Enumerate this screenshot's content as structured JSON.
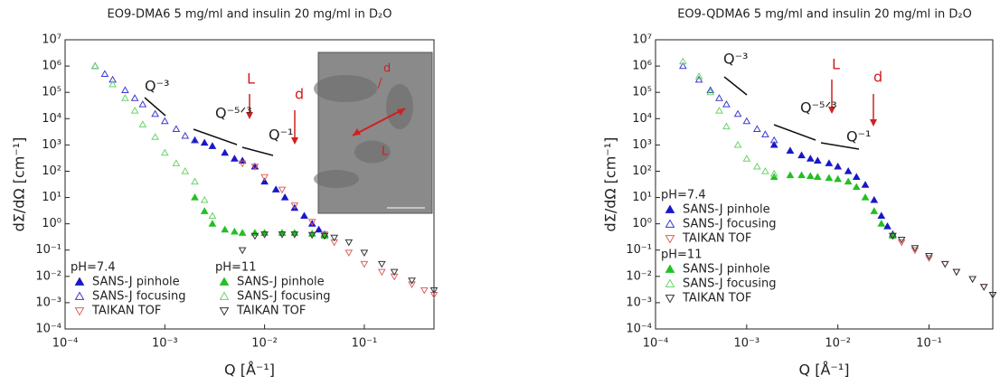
{
  "chart_data": [
    {
      "type": "scatter",
      "title": "EO9-DMA6 5 mg/ml and insulin 20 mg/ml in D₂O",
      "x_label": "Q [Å⁻¹]",
      "y_label": "dΣ/dΩ [cm⁻¹]",
      "log_x": true,
      "log_y": true,
      "xlim": [
        0.0001,
        0.5
      ],
      "ylim": [
        0.0001,
        10000000
      ],
      "xticks": [
        {
          "value": 0.0001,
          "label": "10⁻⁴"
        },
        {
          "value": 0.001,
          "label": "10⁻³"
        },
        {
          "value": 0.01,
          "label": "10⁻²"
        },
        {
          "value": 0.1,
          "label": "10⁻¹"
        }
      ],
      "yticks": [
        {
          "value": 0.0001,
          "label": "10⁻⁴"
        },
        {
          "value": 0.001,
          "label": "10⁻³"
        },
        {
          "value": 0.01,
          "label": "10⁻²"
        },
        {
          "value": 0.1,
          "label": "10⁻¹"
        },
        {
          "value": 1,
          "label": "10⁰"
        },
        {
          "value": 10,
          "label": "10¹"
        },
        {
          "value": 100,
          "label": "10²"
        },
        {
          "value": 1000,
          "label": "10³"
        },
        {
          "value": 10000,
          "label": "10⁴"
        },
        {
          "value": 100000,
          "label": "10⁵"
        },
        {
          "value": 1000000,
          "label": "10⁶"
        },
        {
          "value": 10000000,
          "label": "10⁷"
        }
      ],
      "annotations": [
        "Q⁻³",
        "Q⁻⁵ᐟ³",
        "Q⁻¹",
        "L",
        "d"
      ],
      "inset_labels": [
        "d",
        "L"
      ],
      "groups": [
        {
          "name": "pH=7.4",
          "series": [
            {
              "name": "SANS-J pinhole",
              "color": "#1818c8",
              "marker": "triangle-up",
              "filled": true,
              "x": [
                0.002,
                0.0025,
                0.003,
                0.004,
                0.005,
                0.006,
                0.008,
                0.01,
                0.013,
                0.016,
                0.02,
                0.025,
                0.03,
                0.035,
                0.04
              ],
              "values": [
                1500,
                1200,
                900,
                500,
                300,
                250,
                150,
                40,
                20,
                10,
                4,
                2,
                1,
                0.6,
                0.4
              ]
            },
            {
              "name": "SANS-J focusing",
              "color": "#3a3ad0",
              "marker": "triangle-up",
              "filled": false,
              "x": [
                0.0002,
                0.00025,
                0.0003,
                0.0004,
                0.0005,
                0.0006,
                0.0008,
                0.001,
                0.0013,
                0.0016,
                0.002
              ],
              "values": [
                1000000,
                500000,
                300000,
                120000,
                60000,
                35000,
                15000,
                8000,
                4000,
                2200,
                1500
              ]
            },
            {
              "name": "TAIKAN TOF",
              "color": "#e06060",
              "marker": "triangle-down",
              "filled": false,
              "x": [
                0.006,
                0.008,
                0.01,
                0.015,
                0.02,
                0.03,
                0.04,
                0.05,
                0.07,
                0.1,
                0.15,
                0.2,
                0.3,
                0.4,
                0.5
              ],
              "values": [
                200,
                150,
                60,
                20,
                5,
                1.2,
                0.4,
                0.2,
                0.08,
                0.03,
                0.015,
                0.01,
                0.005,
                0.003,
                0.002
              ]
            }
          ]
        },
        {
          "name": "pH=11",
          "series": [
            {
              "name": "SANS-J pinhole",
              "color": "#22c022",
              "marker": "triangle-up",
              "filled": true,
              "x": [
                0.002,
                0.0025,
                0.003,
                0.004,
                0.005,
                0.006,
                0.008,
                0.01,
                0.015,
                0.02,
                0.03,
                0.04
              ],
              "values": [
                10,
                3,
                1,
                0.6,
                0.5,
                0.45,
                0.45,
                0.45,
                0.45,
                0.45,
                0.42,
                0.35
              ]
            },
            {
              "name": "SANS-J focusing",
              "color": "#6ad46a",
              "marker": "triangle-up",
              "filled": false,
              "x": [
                0.0002,
                0.0003,
                0.0004,
                0.0005,
                0.0006,
                0.0008,
                0.001,
                0.0013,
                0.0016,
                0.002,
                0.0025,
                0.003
              ],
              "values": [
                1000000,
                200000,
                60000,
                20000,
                6000,
                2000,
                500,
                200,
                100,
                40,
                8,
                2
              ]
            },
            {
              "name": "TAIKAN TOF",
              "color": "#333333",
              "marker": "triangle-down",
              "filled": false,
              "x": [
                0.006,
                0.008,
                0.01,
                0.015,
                0.02,
                0.03,
                0.04,
                0.05,
                0.07,
                0.1,
                0.15,
                0.2,
                0.3,
                0.5
              ],
              "values": [
                0.1,
                0.35,
                0.4,
                0.4,
                0.4,
                0.38,
                0.35,
                0.3,
                0.2,
                0.08,
                0.03,
                0.015,
                0.007,
                0.003
              ]
            }
          ]
        }
      ]
    },
    {
      "type": "scatter",
      "title": "EO9-QDMA6 5 mg/ml and insulin 20 mg/ml in D₂O",
      "x_label": "Q [Å⁻¹]",
      "y_label": "dΣ/dΩ [cm⁻¹]",
      "log_x": true,
      "log_y": true,
      "xlim": [
        0.0001,
        0.5
      ],
      "ylim": [
        0.0001,
        10000000
      ],
      "xticks": [
        {
          "value": 0.0001,
          "label": "10⁻⁴"
        },
        {
          "value": 0.001,
          "label": "10⁻³"
        },
        {
          "value": 0.01,
          "label": "10⁻²"
        },
        {
          "value": 0.1,
          "label": "10⁻¹"
        }
      ],
      "yticks": [
        {
          "value": 0.0001,
          "label": "10⁻⁴"
        },
        {
          "value": 0.001,
          "label": "10⁻³"
        },
        {
          "value": 0.01,
          "label": "10⁻²"
        },
        {
          "value": 0.1,
          "label": "10⁻¹"
        },
        {
          "value": 1,
          "label": "10⁰"
        },
        {
          "value": 10,
          "label": "10¹"
        },
        {
          "value": 100,
          "label": "10²"
        },
        {
          "value": 1000,
          "label": "10³"
        },
        {
          "value": 10000,
          "label": "10⁴"
        },
        {
          "value": 100000,
          "label": "10⁵"
        },
        {
          "value": 1000000,
          "label": "10⁶"
        },
        {
          "value": 10000000,
          "label": "10⁷"
        }
      ],
      "annotations": [
        "Q⁻³",
        "Q⁻⁵ᐟ³",
        "Q⁻¹",
        "L",
        "d"
      ],
      "groups": [
        {
          "name": "pH=7.4",
          "series": [
            {
              "name": "SANS-J pinhole",
              "color": "#1818c8",
              "marker": "triangle-up",
              "filled": true,
              "x": [
                0.002,
                0.003,
                0.004,
                0.005,
                0.006,
                0.008,
                0.01,
                0.013,
                0.016,
                0.02,
                0.025,
                0.03,
                0.035,
                0.04
              ],
              "values": [
                1000,
                600,
                400,
                300,
                250,
                200,
                150,
                100,
                60,
                30,
                8,
                2,
                0.8,
                0.4
              ]
            },
            {
              "name": "SANS-J focusing",
              "color": "#3a3ad0",
              "marker": "triangle-up",
              "filled": false,
              "x": [
                0.0002,
                0.0003,
                0.0004,
                0.0005,
                0.0006,
                0.0008,
                0.001,
                0.0013,
                0.0016,
                0.002
              ],
              "values": [
                1000000,
                300000,
                120000,
                60000,
                35000,
                15000,
                8000,
                4000,
                2500,
                1500
              ]
            },
            {
              "name": "TAIKAN TOF",
              "color": "#e06060",
              "marker": "triangle-down",
              "filled": false,
              "x": [
                0.04,
                0.05,
                0.07,
                0.1,
                0.15,
                0.2,
                0.3,
                0.4,
                0.5
              ],
              "values": [
                0.35,
                0.2,
                0.1,
                0.05,
                0.03,
                0.015,
                0.008,
                0.004,
                0.002
              ]
            }
          ]
        },
        {
          "name": "pH=11",
          "series": [
            {
              "name": "SANS-J pinhole",
              "color": "#22c022",
              "marker": "triangle-up",
              "filled": true,
              "x": [
                0.002,
                0.003,
                0.004,
                0.005,
                0.006,
                0.008,
                0.01,
                0.013,
                0.016,
                0.02,
                0.025,
                0.03,
                0.04
              ],
              "values": [
                60,
                70,
                70,
                65,
                60,
                55,
                50,
                40,
                25,
                10,
                3,
                1,
                0.35
              ]
            },
            {
              "name": "SANS-J focusing",
              "color": "#6ad46a",
              "marker": "triangle-up",
              "filled": false,
              "x": [
                0.0002,
                0.0003,
                0.0004,
                0.0005,
                0.0006,
                0.0008,
                0.001,
                0.0013,
                0.0016,
                0.002
              ],
              "values": [
                1500000,
                400000,
                100000,
                20000,
                5000,
                1000,
                300,
                150,
                100,
                80
              ]
            },
            {
              "name": "TAIKAN TOF",
              "color": "#333333",
              "marker": "triangle-down",
              "filled": false,
              "x": [
                0.04,
                0.05,
                0.07,
                0.1,
                0.15,
                0.2,
                0.3,
                0.4,
                0.5
              ],
              "values": [
                0.35,
                0.25,
                0.12,
                0.06,
                0.03,
                0.015,
                0.008,
                0.004,
                0.002
              ]
            }
          ]
        }
      ]
    }
  ]
}
